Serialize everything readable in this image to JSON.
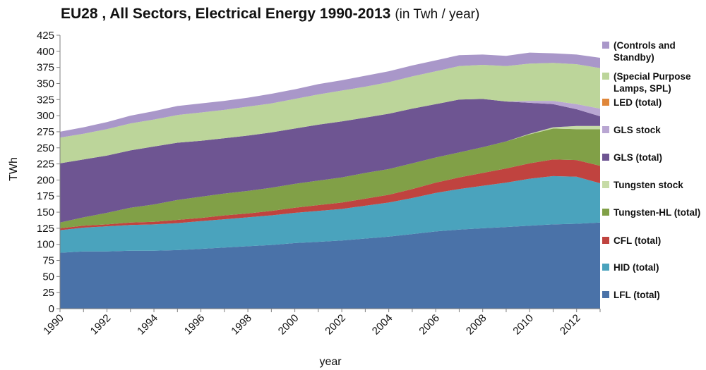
{
  "chart_data": {
    "type": "area",
    "stacked": true,
    "title": "EU28 , All Sectors, Electrical Energy 1990-2013",
    "subtitle": "(in Twh / year)",
    "xlabel": "year",
    "ylabel": "TWh",
    "ylim": [
      0,
      425
    ],
    "ytick_step": 25,
    "xlim": [
      1990,
      2013
    ],
    "xticks": [
      1990,
      1992,
      1994,
      1996,
      1998,
      2000,
      2002,
      2004,
      2006,
      2008,
      2010,
      2012
    ],
    "grid": false,
    "legend_position": "right",
    "x": [
      1990,
      1991,
      1992,
      1993,
      1994,
      1995,
      1996,
      1997,
      1998,
      1999,
      2000,
      2001,
      2002,
      2003,
      2004,
      2005,
      2006,
      2007,
      2008,
      2009,
      2010,
      2011,
      2012,
      2013
    ],
    "series": [
      {
        "name": "LFL (total)",
        "color": "#4a72a8",
        "values": [
          87,
          89,
          89,
          90,
          90,
          91,
          93,
          95,
          97,
          99,
          102,
          104,
          106,
          109,
          112,
          116,
          120,
          123,
          125,
          127,
          129,
          131,
          132,
          134
        ]
      },
      {
        "name": "HID (total)",
        "color": "#4aa3bd",
        "values": [
          35,
          37,
          39,
          40,
          41,
          42,
          43,
          44,
          45,
          46,
          47,
          48,
          49,
          51,
          53,
          56,
          60,
          63,
          66,
          69,
          73,
          75,
          73,
          61
        ]
      },
      {
        "name": "CFL (total)",
        "color": "#c0433f",
        "values": [
          3,
          3,
          3,
          4,
          4,
          5,
          5,
          6,
          6,
          7,
          8,
          9,
          10,
          11,
          12,
          14,
          16,
          18,
          20,
          22,
          24,
          26,
          26,
          27
        ]
      },
      {
        "name": "Tungsten-HL (total)",
        "color": "#81a047",
        "values": [
          9,
          13,
          18,
          23,
          27,
          31,
          33,
          34,
          35,
          36,
          37,
          38,
          39,
          40,
          40,
          40,
          39,
          39,
          40,
          42,
          45,
          48,
          48,
          57
        ]
      },
      {
        "name": "Tungsten stock",
        "color": "#c6dba6",
        "values": [
          0,
          0,
          0,
          0,
          0,
          0,
          0,
          0,
          0,
          0,
          0,
          0,
          0,
          0,
          0,
          0,
          0,
          0,
          0,
          0,
          1,
          2,
          5,
          5
        ]
      },
      {
        "name": "GLS (total)",
        "color": "#6e5592",
        "values": [
          92,
          90,
          89,
          89,
          90,
          89,
          87,
          86,
          86,
          86,
          86,
          87,
          87,
          86,
          86,
          85,
          83,
          82,
          75,
          62,
          48,
          36,
          26,
          15
        ]
      },
      {
        "name": "GLS stock",
        "color": "#b9a6d2",
        "values": [
          0,
          0,
          0,
          0,
          0,
          0,
          0,
          0,
          0,
          0,
          0,
          0,
          0,
          0,
          0,
          0,
          0,
          0,
          0,
          0,
          3,
          5,
          8,
          12
        ]
      },
      {
        "name": "LED (total)",
        "color": "#e0873a",
        "values": [
          0,
          0,
          0,
          0,
          0,
          0,
          0,
          0,
          0,
          0,
          0,
          0,
          0,
          0,
          0,
          0,
          0,
          0,
          0,
          0,
          0,
          0,
          0,
          0
        ]
      },
      {
        "name": "(Special Purpose Lamps, SPL)",
        "color": "#bcd59a",
        "values": [
          40,
          40,
          41,
          42,
          42,
          43,
          44,
          44,
          45,
          45,
          46,
          47,
          48,
          48,
          49,
          50,
          51,
          52,
          53,
          55,
          58,
          59,
          62,
          63
        ]
      },
      {
        "name": "(Controls and Standby)",
        "color": "#a997c9",
        "values": [
          9,
          10,
          11,
          12,
          13,
          14,
          14,
          14,
          14,
          15,
          15,
          16,
          16,
          17,
          17,
          17,
          17,
          17,
          16,
          16,
          17,
          15,
          15,
          16
        ]
      }
    ]
  }
}
